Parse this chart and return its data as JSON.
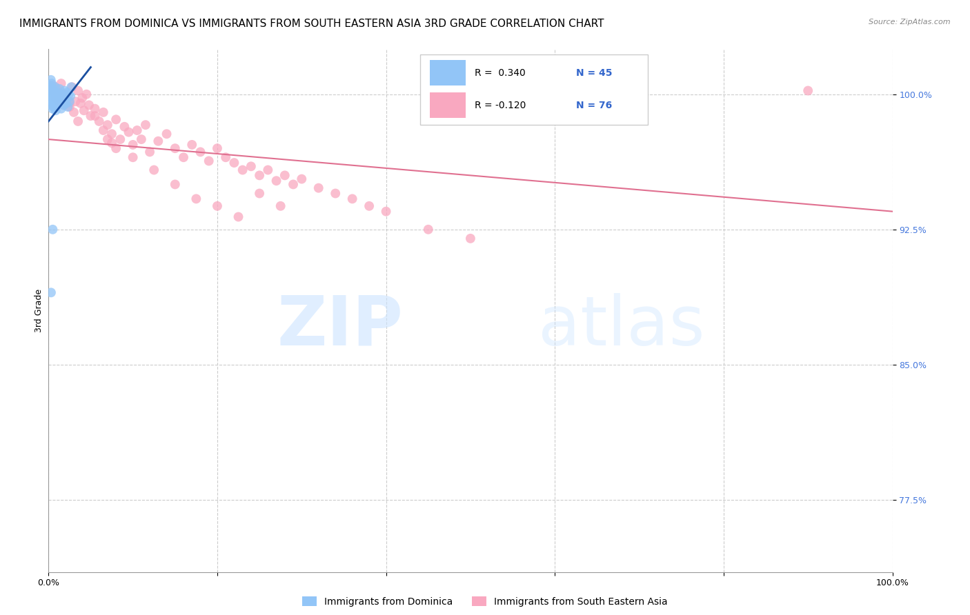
{
  "title": "IMMIGRANTS FROM DOMINICA VS IMMIGRANTS FROM SOUTH EASTERN ASIA 3RD GRADE CORRELATION CHART",
  "source": "Source: ZipAtlas.com",
  "ylabel": "3rd Grade",
  "blue_color": "#92c5f7",
  "pink_color": "#f9a8c0",
  "blue_line_color": "#1a4fa0",
  "pink_line_color": "#e07090",
  "blue_scatter_x": [
    0.15,
    0.18,
    0.2,
    0.22,
    0.25,
    0.28,
    0.3,
    0.32,
    0.35,
    0.38,
    0.4,
    0.42,
    0.45,
    0.48,
    0.5,
    0.52,
    0.55,
    0.6,
    0.65,
    0.7,
    0.75,
    0.8,
    0.85,
    0.9,
    0.95,
    1.0,
    1.1,
    1.2,
    1.3,
    1.4,
    1.5,
    1.6,
    1.7,
    1.8,
    1.9,
    2.0,
    2.1,
    2.2,
    2.3,
    2.4,
    2.5,
    2.6,
    2.7,
    0.5,
    0.3
  ],
  "blue_scatter_y": [
    99.8,
    100.2,
    100.5,
    100.1,
    99.6,
    100.8,
    99.9,
    100.3,
    99.4,
    100.6,
    100.0,
    99.7,
    100.4,
    99.2,
    100.1,
    99.5,
    99.8,
    99.3,
    100.2,
    99.6,
    99.9,
    100.4,
    99.1,
    100.0,
    99.7,
    99.4,
    100.1,
    99.8,
    100.3,
    99.5,
    99.2,
    100.0,
    99.7,
    99.4,
    100.2,
    99.8,
    99.5,
    100.1,
    99.3,
    100.0,
    99.6,
    99.9,
    100.4,
    92.5,
    89.0
  ],
  "pink_scatter_x": [
    0.3,
    0.5,
    0.8,
    1.0,
    1.2,
    1.5,
    1.8,
    2.0,
    2.2,
    2.5,
    2.8,
    3.0,
    3.2,
    3.5,
    3.8,
    4.0,
    4.2,
    4.5,
    4.8,
    5.0,
    5.5,
    6.0,
    6.5,
    7.0,
    7.5,
    8.0,
    8.5,
    9.0,
    9.5,
    10.0,
    10.5,
    11.0,
    11.5,
    12.0,
    13.0,
    14.0,
    15.0,
    16.0,
    17.0,
    18.0,
    19.0,
    20.0,
    21.0,
    22.0,
    23.0,
    24.0,
    25.0,
    26.0,
    27.0,
    28.0,
    29.0,
    30.0,
    32.0,
    34.0,
    36.0,
    38.0,
    40.0,
    1.5,
    2.5,
    3.5,
    5.5,
    7.5,
    10.0,
    12.5,
    15.0,
    17.5,
    20.0,
    22.5,
    25.0,
    27.5,
    45.0,
    50.0,
    6.5,
    7.0,
    8.0,
    90.0
  ],
  "pink_scatter_y": [
    100.2,
    100.5,
    99.8,
    100.3,
    99.6,
    100.1,
    99.4,
    100.0,
    99.7,
    99.3,
    100.4,
    99.0,
    99.6,
    100.2,
    99.5,
    99.8,
    99.1,
    100.0,
    99.4,
    98.8,
    99.2,
    98.5,
    99.0,
    98.3,
    97.8,
    98.6,
    97.5,
    98.2,
    97.9,
    97.2,
    98.0,
    97.5,
    98.3,
    96.8,
    97.4,
    97.8,
    97.0,
    96.5,
    97.2,
    96.8,
    96.3,
    97.0,
    96.5,
    96.2,
    95.8,
    96.0,
    95.5,
    95.8,
    95.2,
    95.5,
    95.0,
    95.3,
    94.8,
    94.5,
    94.2,
    93.8,
    93.5,
    100.6,
    99.5,
    98.5,
    98.8,
    97.3,
    96.5,
    95.8,
    95.0,
    94.2,
    93.8,
    93.2,
    94.5,
    93.8,
    92.5,
    92.0,
    98.0,
    97.5,
    97.0,
    100.2
  ],
  "blue_line_x0": 0.0,
  "blue_line_y0": 98.5,
  "blue_line_x1": 5.0,
  "blue_line_y1": 101.5,
  "pink_line_x0": 0.0,
  "pink_line_y0": 97.5,
  "pink_line_x1": 100.0,
  "pink_line_y1": 93.5,
  "xlim": [
    0,
    100
  ],
  "ylim": [
    73.5,
    102.5
  ],
  "yticks": [
    77.5,
    85.0,
    92.5,
    100.0
  ],
  "grid_color": "#cccccc",
  "background_color": "#ffffff",
  "title_fontsize": 11,
  "axis_label_fontsize": 9,
  "tick_label_fontsize": 9,
  "marker_size": 100,
  "watermark_zip": "ZIP",
  "watermark_atlas": "atlas"
}
